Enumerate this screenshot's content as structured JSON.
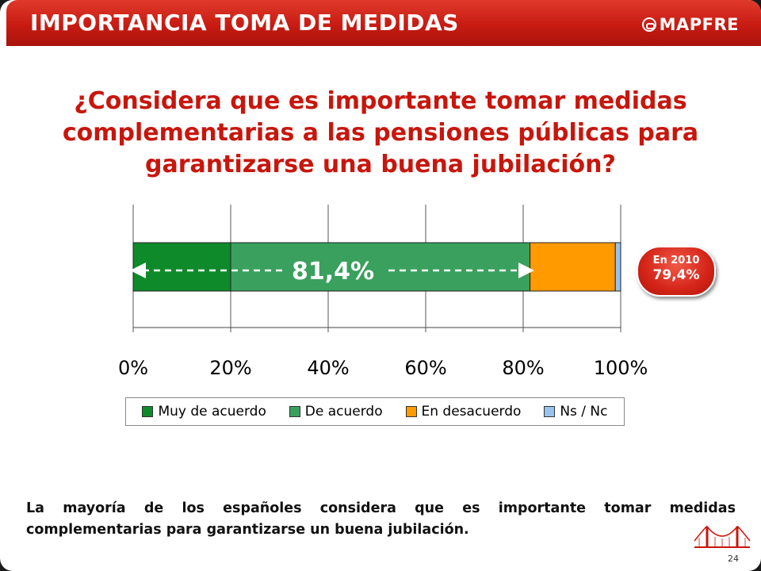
{
  "header": {
    "title": "IMPORTANCIA TOMA DE MEDIDAS",
    "logo_text": "MAPFRE"
  },
  "question": "¿Considera que es importante tomar medidas complementarias a las pensiones públicas para garantizarse una buena jubilación?",
  "colors": {
    "header_red": "#c81b12",
    "question_red": "#c8160c",
    "muy_de_acuerdo": "#0f8a2a",
    "de_acuerdo": "#3aa05e",
    "en_desacuerdo": "#ff9a00",
    "ns_nc": "#99c3ef"
  },
  "chart_data": {
    "type": "bar",
    "orientation": "horizontal",
    "stacked": true,
    "categories": [
      ""
    ],
    "series": [
      {
        "name": "Muy de acuerdo",
        "values": [
          20.0
        ]
      },
      {
        "name": "De acuerdo",
        "values": [
          61.4
        ]
      },
      {
        "name": "En desacuerdo",
        "values": [
          17.5
        ]
      },
      {
        "name": "Ns / Nc",
        "values": [
          1.1
        ]
      }
    ],
    "xlim": [
      0,
      100
    ],
    "x_ticks": [
      "0%",
      "20%",
      "40%",
      "60%",
      "80%",
      "100%"
    ],
    "grid": true,
    "legend_position": "bottom",
    "annotation": "81,4%"
  },
  "badge": {
    "line1": "En 2010",
    "line2": "79,4%"
  },
  "footnote": "La mayoría de los españoles considera que es importante tomar medidas complementarias para garantizarse un buena jubilación.",
  "page_number": "24"
}
